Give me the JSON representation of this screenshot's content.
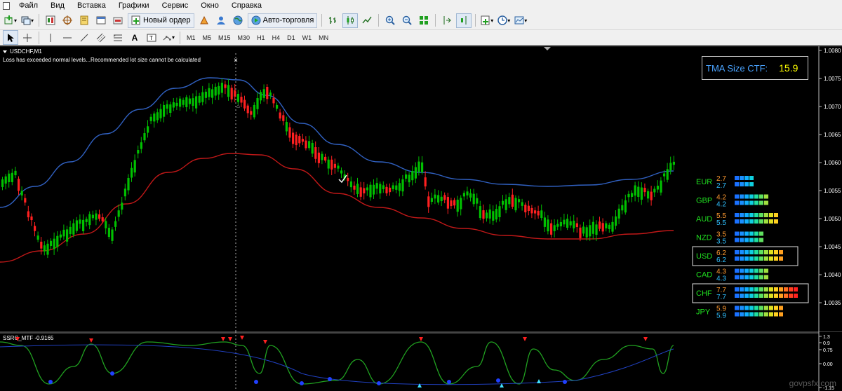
{
  "menu": [
    "Файл",
    "Вид",
    "Вставка",
    "Графики",
    "Сервис",
    "Окно",
    "Справка"
  ],
  "toolbar": {
    "new_order_label": "Новый ордер",
    "autotrading_label": "Авто-торговля"
  },
  "timeframes": [
    "M1",
    "M5",
    "M15",
    "M30",
    "H1",
    "H4",
    "D1",
    "W1",
    "MN"
  ],
  "chart": {
    "symbol": "USDCHF,M1",
    "message": "Loss has exceeded normal levels...Recommended lot size cannot be calculated",
    "price_axis": [
      "1.0080",
      "1.0075",
      "1.0070",
      "1.0065",
      "1.0060",
      "1.0055",
      "1.0050",
      "1.0045",
      "1.0040",
      "1.0035"
    ],
    "tma_label": "TMA Size CTF:",
    "tma_value": "15.9",
    "watermark": "govpsfx.com"
  },
  "currency_strength": [
    {
      "name": "EUR",
      "v1": "2.7",
      "v2": "2.7",
      "level": 2.7,
      "highlight": false
    },
    {
      "name": "GBP",
      "v1": "4.2",
      "v2": "4.2",
      "level": 4.2,
      "highlight": false
    },
    {
      "name": "AUD",
      "v1": "5.5",
      "v2": "5.5",
      "level": 5.5,
      "highlight": false
    },
    {
      "name": "NZD",
      "v1": "3.5",
      "v2": "3.5",
      "level": 3.5,
      "highlight": false
    },
    {
      "name": "USD",
      "v1": "6.2",
      "v2": "6.2",
      "level": 6.2,
      "highlight": true
    },
    {
      "name": "CAD",
      "v1": "4.3",
      "v2": "4.3",
      "level": 4.3,
      "highlight": false
    },
    {
      "name": "CHF",
      "v1": "7.7",
      "v2": "7.7",
      "level": 7.7,
      "highlight": true
    },
    {
      "name": "JPY",
      "v1": "5.9",
      "v2": "5.9",
      "level": 5.9,
      "highlight": false
    }
  ],
  "subwindow": {
    "title": "SSRC_MTF -0.9165",
    "axis": [
      "1.3",
      "0.9",
      "0.75",
      "0.00",
      "-1.15"
    ]
  },
  "colors": {
    "bull": "#00c000",
    "bear": "#ff2020",
    "tma_upper": "#3060c0",
    "tma_lower": "#c01818",
    "ssrc_line": "#20a020"
  }
}
